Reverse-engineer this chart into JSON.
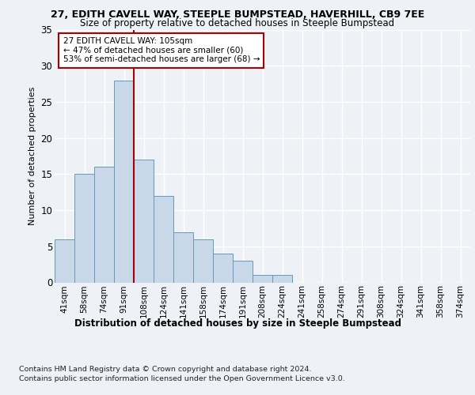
{
  "title1": "27, EDITH CAVELL WAY, STEEPLE BUMPSTEAD, HAVERHILL, CB9 7EE",
  "title2": "Size of property relative to detached houses in Steeple Bumpstead",
  "xlabel": "Distribution of detached houses by size in Steeple Bumpstead",
  "ylabel": "Number of detached properties",
  "bin_labels": [
    "41sqm",
    "58sqm",
    "74sqm",
    "91sqm",
    "108sqm",
    "124sqm",
    "141sqm",
    "158sqm",
    "174sqm",
    "191sqm",
    "208sqm",
    "224sqm",
    "241sqm",
    "258sqm",
    "274sqm",
    "291sqm",
    "308sqm",
    "324sqm",
    "341sqm",
    "358sqm",
    "374sqm"
  ],
  "bar_values": [
    6,
    15,
    16,
    28,
    17,
    12,
    7,
    6,
    4,
    3,
    1,
    1,
    0,
    0,
    0,
    0,
    0,
    0,
    0,
    0,
    0
  ],
  "bar_color": "#c8d8e8",
  "bar_edgecolor": "#6699bb",
  "vline_color": "#aa0000",
  "annotation_text": "27 EDITH CAVELL WAY: 105sqm\n← 47% of detached houses are smaller (60)\n53% of semi-detached houses are larger (68) →",
  "annotation_box_edgecolor": "#aa0000",
  "ylim": [
    0,
    35
  ],
  "yticks": [
    0,
    5,
    10,
    15,
    20,
    25,
    30,
    35
  ],
  "footer1": "Contains HM Land Registry data © Crown copyright and database right 2024.",
  "footer2": "Contains public sector information licensed under the Open Government Licence v3.0.",
  "bg_color": "#eef2f7",
  "plot_bg_color": "#eef2f7",
  "vline_bin": 3.5
}
